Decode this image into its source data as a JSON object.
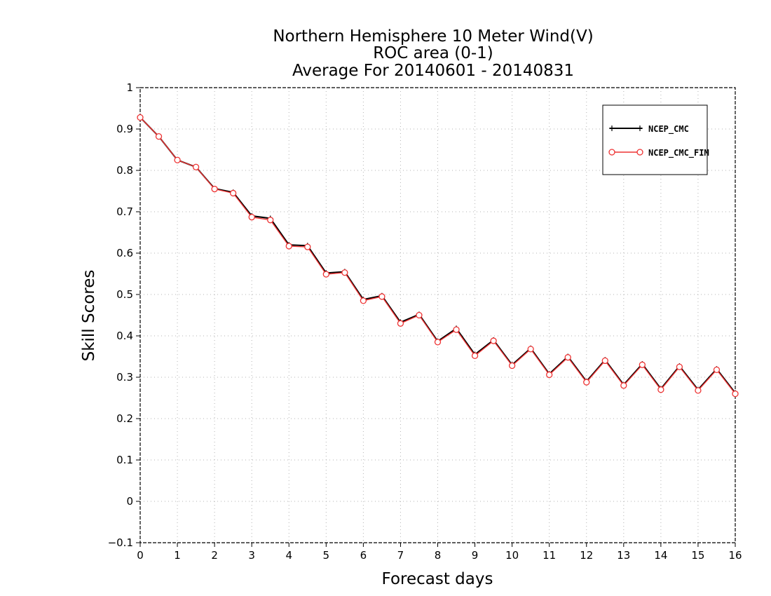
{
  "chart_data": {
    "type": "line",
    "title_lines": [
      "Northern Hemisphere 10 Meter Wind(V)",
      "ROC area (0-1)",
      "Average For 20140601 - 20140831"
    ],
    "xlabel": "Forecast days",
    "ylabel": "Skill Scores",
    "xlim": [
      0,
      16
    ],
    "ylim": [
      -0.1,
      1
    ],
    "xticks": [
      "0",
      "1",
      "2",
      "3",
      "4",
      "5",
      "6",
      "7",
      "8",
      "9",
      "10",
      "11",
      "12",
      "13",
      "14",
      "15",
      "16"
    ],
    "yticks": [
      "−0.1",
      "0",
      "0.1",
      "0.2",
      "0.3",
      "0.4",
      "0.5",
      "0.6",
      "0.7",
      "0.8",
      "0.9",
      "1"
    ],
    "grid": true,
    "legend_position": "top-right",
    "x": [
      0,
      0.5,
      1,
      1.5,
      2,
      2.5,
      3,
      3.5,
      4,
      4.5,
      5,
      5.5,
      6,
      6.5,
      7,
      7.5,
      8,
      8.5,
      9,
      9.5,
      10,
      10.5,
      11,
      11.5,
      12,
      12.5,
      13,
      13.5,
      14,
      14.5,
      15,
      15.5,
      16
    ],
    "series": [
      {
        "name": "NCEP_CMC",
        "color": "#000000",
        "marker": "plus",
        "values": [
          0.928,
          0.882,
          0.825,
          0.808,
          0.756,
          0.747,
          0.69,
          0.684,
          0.62,
          0.618,
          0.552,
          0.555,
          0.488,
          0.497,
          0.433,
          0.452,
          0.387,
          0.418,
          0.355,
          0.39,
          0.33,
          0.37,
          0.308,
          0.35,
          0.29,
          0.342,
          0.282,
          0.332,
          0.272,
          0.327,
          0.27,
          0.32,
          0.262
        ]
      },
      {
        "name": "NCEP_CMC_FIM",
        "color": "#ee3333",
        "marker": "circle",
        "values": [
          0.928,
          0.882,
          0.825,
          0.808,
          0.755,
          0.745,
          0.687,
          0.68,
          0.617,
          0.615,
          0.549,
          0.553,
          0.485,
          0.495,
          0.43,
          0.45,
          0.385,
          0.415,
          0.352,
          0.388,
          0.328,
          0.368,
          0.306,
          0.348,
          0.288,
          0.34,
          0.28,
          0.33,
          0.27,
          0.325,
          0.268,
          0.318,
          0.26
        ]
      }
    ]
  }
}
